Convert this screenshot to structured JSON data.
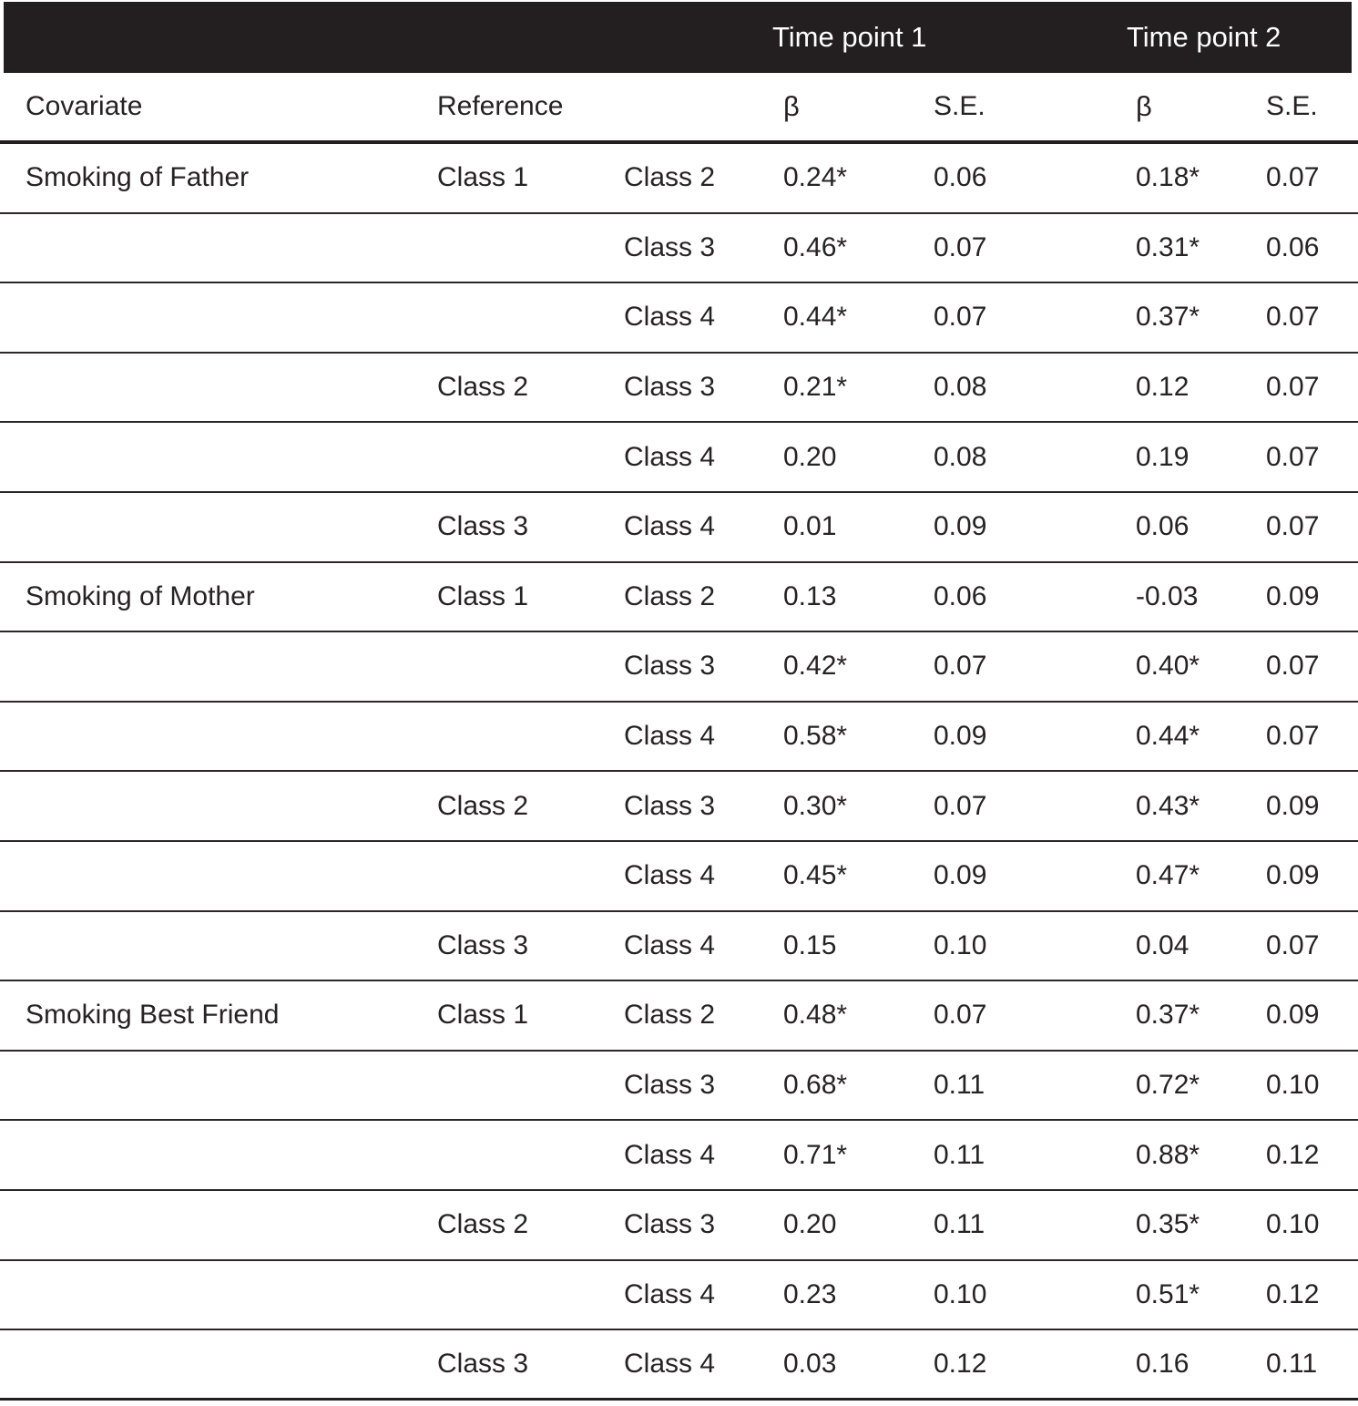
{
  "header": {
    "time_point_1": "Time point 1",
    "time_point_2": "Time point 2",
    "covariate_label": "Covariate",
    "reference_label": "Reference",
    "beta_label": "β",
    "se_label": "S.E."
  },
  "colors": {
    "header_bg": "#231f20",
    "header_text": "#ffffff",
    "body_text": "#272324",
    "rule": "#2b2728"
  },
  "table": {
    "rows": [
      {
        "covariate": "Smoking of Father",
        "reference": "Class 1",
        "comparison": "Class 2",
        "tp1_beta": "0.24*",
        "tp1_se": "0.06",
        "tp2_beta": "0.18*",
        "tp2_se": "0.07"
      },
      {
        "covariate": "",
        "reference": "",
        "comparison": "Class 3",
        "tp1_beta": "0.46*",
        "tp1_se": "0.07",
        "tp2_beta": "0.31*",
        "tp2_se": "0.06"
      },
      {
        "covariate": "",
        "reference": "",
        "comparison": "Class 4",
        "tp1_beta": "0.44*",
        "tp1_se": "0.07",
        "tp2_beta": "0.37*",
        "tp2_se": "0.07"
      },
      {
        "covariate": "",
        "reference": "Class 2",
        "comparison": "Class 3",
        "tp1_beta": "0.21*",
        "tp1_se": "0.08",
        "tp2_beta": "0.12",
        "tp2_se": "0.07"
      },
      {
        "covariate": "",
        "reference": "",
        "comparison": "Class 4",
        "tp1_beta": "0.20",
        "tp1_se": "0.08",
        "tp2_beta": "0.19",
        "tp2_se": "0.07"
      },
      {
        "covariate": "",
        "reference": "Class 3",
        "comparison": "Class 4",
        "tp1_beta": "0.01",
        "tp1_se": "0.09",
        "tp2_beta": "0.06",
        "tp2_se": "0.07"
      },
      {
        "covariate": "Smoking of Mother",
        "reference": "Class 1",
        "comparison": "Class 2",
        "tp1_beta": "0.13",
        "tp1_se": "0.06",
        "tp2_beta": "-0.03",
        "tp2_se": "0.09"
      },
      {
        "covariate": "",
        "reference": "",
        "comparison": "Class 3",
        "tp1_beta": "0.42*",
        "tp1_se": "0.07",
        "tp2_beta": "0.40*",
        "tp2_se": "0.07"
      },
      {
        "covariate": "",
        "reference": "",
        "comparison": "Class 4",
        "tp1_beta": "0.58*",
        "tp1_se": "0.09",
        "tp2_beta": "0.44*",
        "tp2_se": "0.07"
      },
      {
        "covariate": "",
        "reference": "Class 2",
        "comparison": "Class 3",
        "tp1_beta": "0.30*",
        "tp1_se": "0.07",
        "tp2_beta": "0.43*",
        "tp2_se": "0.09"
      },
      {
        "covariate": "",
        "reference": "",
        "comparison": "Class 4",
        "tp1_beta": "0.45*",
        "tp1_se": "0.09",
        "tp2_beta": "0.47*",
        "tp2_se": "0.09"
      },
      {
        "covariate": "",
        "reference": "Class 3",
        "comparison": "Class 4",
        "tp1_beta": "0.15",
        "tp1_se": "0.10",
        "tp2_beta": "0.04",
        "tp2_se": "0.07"
      },
      {
        "covariate": "Smoking Best Friend",
        "reference": "Class 1",
        "comparison": "Class 2",
        "tp1_beta": "0.48*",
        "tp1_se": "0.07",
        "tp2_beta": "0.37*",
        "tp2_se": "0.09"
      },
      {
        "covariate": "",
        "reference": "",
        "comparison": "Class 3",
        "tp1_beta": "0.68*",
        "tp1_se": "0.11",
        "tp2_beta": "0.72*",
        "tp2_se": "0.10"
      },
      {
        "covariate": "",
        "reference": "",
        "comparison": "Class 4",
        "tp1_beta": "0.71*",
        "tp1_se": "0.11",
        "tp2_beta": "0.88*",
        "tp2_se": "0.12"
      },
      {
        "covariate": "",
        "reference": "Class 2",
        "comparison": "Class 3",
        "tp1_beta": "0.20",
        "tp1_se": "0.11",
        "tp2_beta": "0.35*",
        "tp2_se": "0.10"
      },
      {
        "covariate": "",
        "reference": "",
        "comparison": "Class 4",
        "tp1_beta": "0.23",
        "tp1_se": "0.10",
        "tp2_beta": "0.51*",
        "tp2_se": "0.12"
      },
      {
        "covariate": "",
        "reference": "Class 3",
        "comparison": "Class 4",
        "tp1_beta": "0.03",
        "tp1_se": "0.12",
        "tp2_beta": "0.16",
        "tp2_se": "0.11"
      }
    ]
  }
}
